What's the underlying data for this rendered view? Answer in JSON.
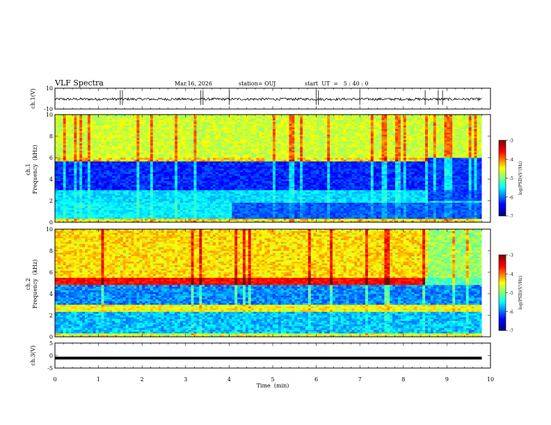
{
  "header": {
    "title": "VLF Spectra",
    "date": "Mar.16, 2026",
    "station": "station= OUJ",
    "start_ut": "start  UT  =   5 : 40 : 0"
  },
  "chart_data": [
    {
      "type": "line",
      "id": "ch1-waveform",
      "ylabel": "ch.1(V)",
      "ylim": [
        -10,
        10
      ],
      "yticks": [
        "10",
        "-10"
      ],
      "xlim": [
        0,
        10
      ],
      "series": [
        {
          "values_note_free": true,
          "mean": -0.5,
          "amplitude": 1.2
        }
      ]
    },
    {
      "type": "heatmap",
      "id": "ch1-spectrogram",
      "ylabel": "ch.1\nFrequency (kHz)",
      "ylabel_line1": "ch.1",
      "ylabel_line2": "Frequency  (kHz)",
      "xlim": [
        0,
        10
      ],
      "ylim": [
        0,
        10
      ],
      "yticks": [
        "0",
        "2",
        "4",
        "6",
        "8",
        "10"
      ],
      "colorbar": {
        "label": "log(PSD)(V²/Hz)",
        "min": -7,
        "max": -3,
        "ticks": [
          "-3",
          "-4",
          "-5",
          "-6",
          "-7"
        ]
      }
    },
    {
      "type": "heatmap",
      "id": "ch2-spectrogram",
      "ylabel_line1": "ch.2",
      "ylabel_line2": "Frequency  (kHz)",
      "xlim": [
        0,
        10
      ],
      "ylim": [
        0,
        10
      ],
      "yticks": [
        "0",
        "2",
        "4",
        "6",
        "8",
        "10"
      ],
      "colorbar": {
        "label": "log(PSD)(V²/Hz)",
        "min": -7,
        "max": -3,
        "ticks": [
          "-3",
          "-4",
          "-5",
          "-6",
          "-7"
        ]
      }
    },
    {
      "type": "line",
      "id": "ch3-waveform",
      "ylabel": "ch.3(V)",
      "ylim": [
        -5,
        5
      ],
      "yticks": [
        "5",
        "0",
        "-5"
      ],
      "xlim": [
        0,
        10
      ],
      "series": [
        {
          "constant": -1
        }
      ]
    }
  ],
  "xaxis": {
    "label": "Time  (min)",
    "ticks": [
      "0",
      "1",
      "2",
      "3",
      "4",
      "5",
      "6",
      "7",
      "8",
      "9",
      "10"
    ]
  },
  "colors": {
    "jet": [
      "#00008f",
      "#0000ff",
      "#00ffff",
      "#7fff7f",
      "#ffff00",
      "#ff0000",
      "#7f0000"
    ]
  }
}
